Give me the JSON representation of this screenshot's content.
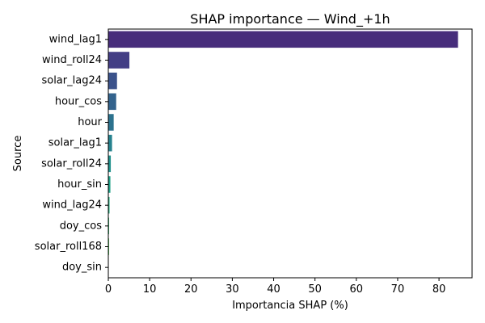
{
  "chart_data": {
    "type": "bar",
    "orientation": "horizontal",
    "title": "SHAP importance — Wind_+1h",
    "xlabel": "Importancia SHAP (%)",
    "ylabel": "Source",
    "xlim": [
      0,
      88
    ],
    "xticks": [
      0,
      10,
      20,
      30,
      40,
      50,
      60,
      70,
      80
    ],
    "grid": false,
    "categories": [
      "wind_lag1",
      "wind_roll24",
      "solar_lag24",
      "hour_cos",
      "hour",
      "solar_lag1",
      "solar_roll24",
      "hour_sin",
      "wind_lag24",
      "doy_cos",
      "solar_roll168",
      "doy_sin"
    ],
    "values": [
      84.6,
      5.1,
      2.1,
      1.9,
      1.3,
      0.9,
      0.6,
      0.5,
      0.3,
      0.2,
      0.2,
      0.1
    ],
    "colors": [
      "#472d7b",
      "#433e85",
      "#3b528b",
      "#33638d",
      "#2c728e",
      "#26828e",
      "#21918c",
      "#1fa088",
      "#28ae80",
      "#3fbc73",
      "#5ec962",
      "#84d44b"
    ]
  }
}
